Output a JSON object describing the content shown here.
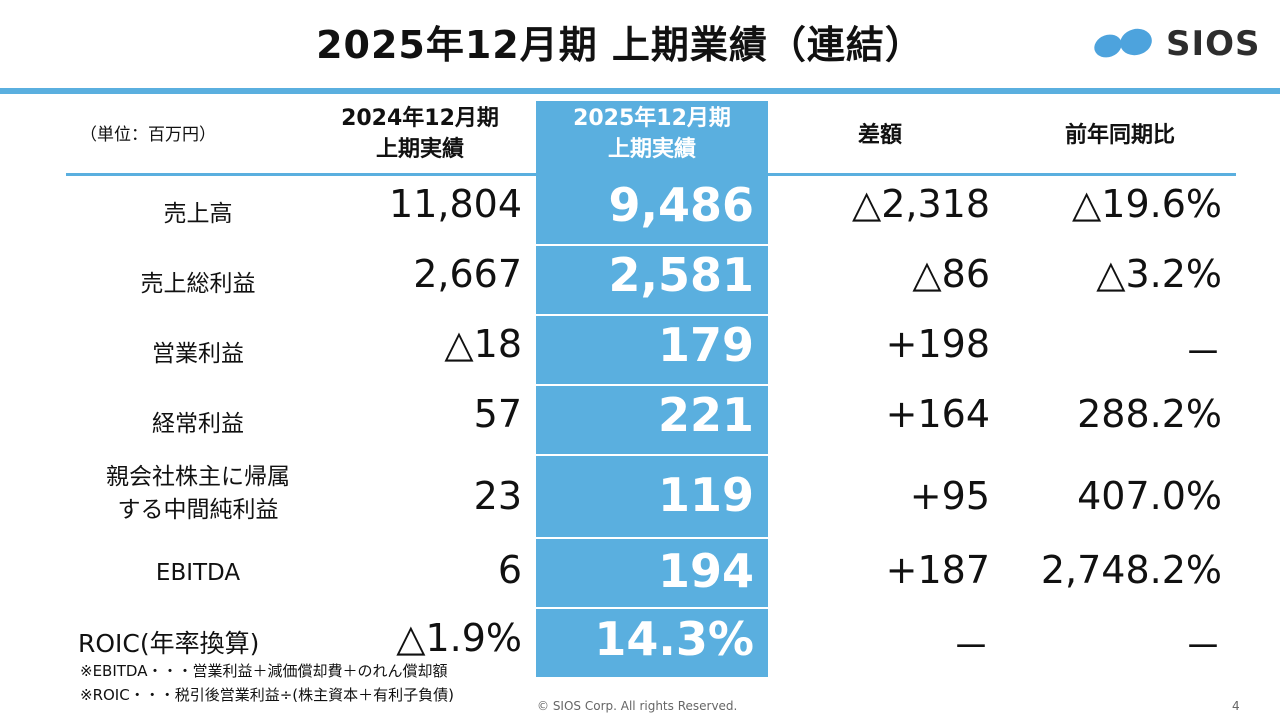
{
  "title": "2025年12月期 上期業績（連結）",
  "logo": {
    "text": "SIOS",
    "color": "#4da3dd"
  },
  "accent_color": "#5aafdf",
  "table": {
    "unit": "（単位：百万円）",
    "headers": {
      "prev_line1": "2024年12月期",
      "prev_line2": "上期実績",
      "curr_line1": "2025年12月期",
      "curr_line2": "上期実績",
      "diff": "差額",
      "yoy": "前年同期比"
    },
    "rows": [
      {
        "label": "売上高",
        "prev": "11,804",
        "curr": "9,486",
        "diff": "△2,318",
        "yoy": "△19.6%"
      },
      {
        "label": "売上総利益",
        "prev": "2,667",
        "curr": "2,581",
        "diff": "△86",
        "yoy": "△3.2%"
      },
      {
        "label": "営業利益",
        "prev": "△18",
        "curr": "179",
        "diff": "+198",
        "yoy": "－"
      },
      {
        "label": "経常利益",
        "prev": "57",
        "curr": "221",
        "diff": "+164",
        "yoy": "288.2%"
      },
      {
        "label_line1": "親会社株主に帰属",
        "label_line2": "する中間純利益",
        "prev": "23",
        "curr": "119",
        "diff": "+95",
        "yoy": "407.0%"
      },
      {
        "label": "EBITDA",
        "prev": "6",
        "curr": "194",
        "diff": "+187",
        "yoy": "2,748.2%"
      },
      {
        "label": "ROIC(年率換算)",
        "prev": "△1.9%",
        "curr": "14.3%",
        "diff": "－",
        "yoy": "－"
      }
    ]
  },
  "notes": [
    "※EBITDA・・・営業利益＋減価償却費＋のれん償却額",
    "※ROIC・・・税引後営業利益÷(株主資本＋有利子負債)"
  ],
  "footer": {
    "copyright": "© SIOS Corp. All rights Reserved.",
    "page_number": "4"
  }
}
